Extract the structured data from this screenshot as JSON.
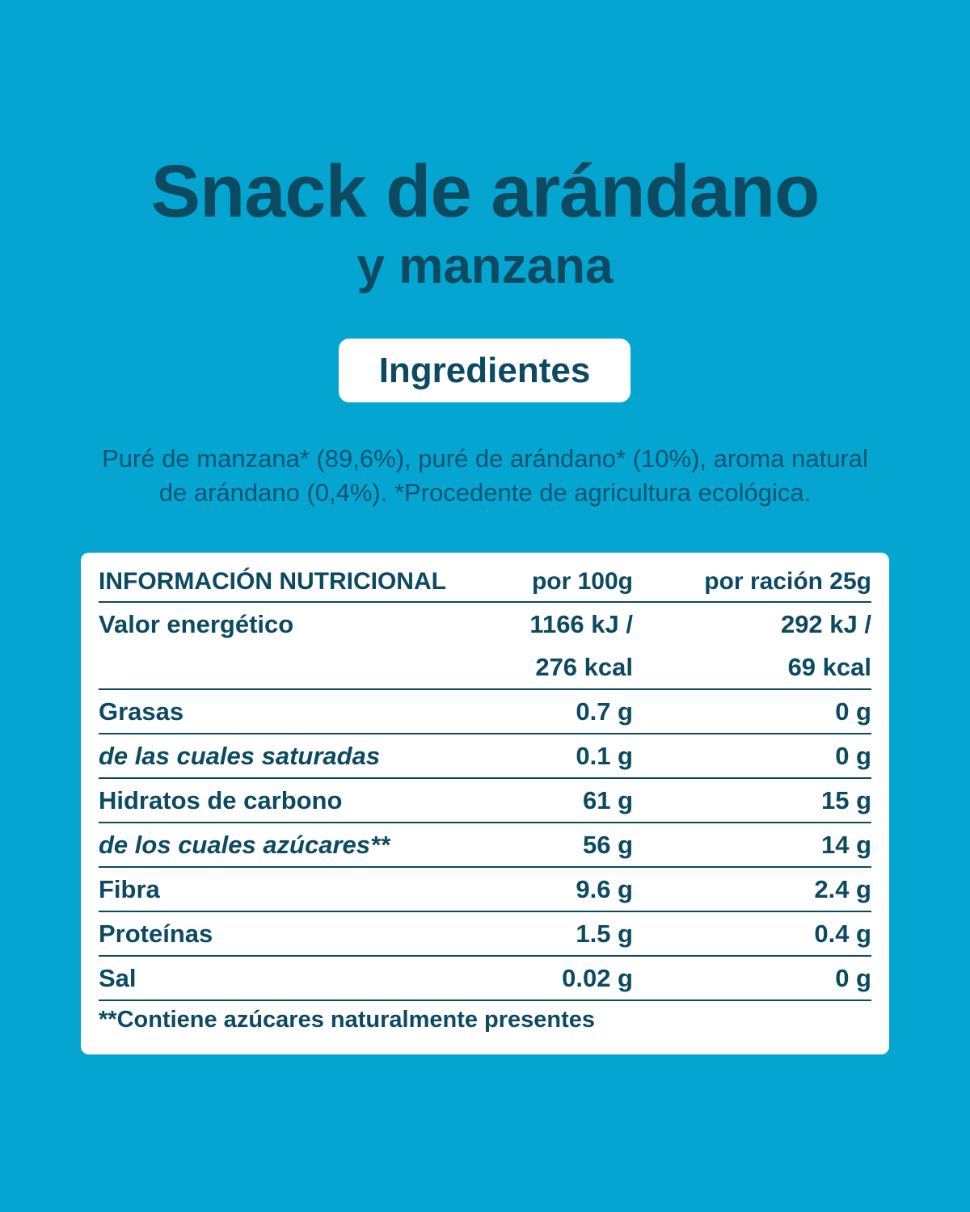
{
  "title": "Snack de arándano",
  "subtitle": "y manzana",
  "ingredients_label": "Ingredientes",
  "ingredients_lines": [
    "Puré de manzana* (89,6%), puré de arándano* (10%), aroma natural",
    "de arándano (0,4%). *Procedente de agricultura ecológica."
  ],
  "table": {
    "header": [
      "INFORMACIÓN NUTRICIONAL",
      "por 100g",
      "por ración 25g"
    ],
    "rows": [
      {
        "label": "Valor energético",
        "per_100g": [
          "1166 kJ /",
          "276 kcal"
        ],
        "per_serving": [
          "292 kJ /",
          "69 kcal"
        ]
      },
      {
        "label": "Grasas",
        "per_100g": [
          "0.7 g"
        ],
        "per_serving": [
          "0 g"
        ]
      },
      {
        "label": "de las cuales saturadas",
        "per_100g": [
          "0.1 g"
        ],
        "per_serving": [
          "0 g"
        ],
        "italic": true
      },
      {
        "label": "Hidratos de carbono",
        "per_100g": [
          "61 g"
        ],
        "per_serving": [
          "15 g"
        ]
      },
      {
        "label": "de los cuales azúcares**",
        "per_100g": [
          "56 g"
        ],
        "per_serving": [
          "14 g"
        ],
        "italic": true
      },
      {
        "label": "Fibra",
        "per_100g": [
          "9.6 g"
        ],
        "per_serving": [
          "2.4 g"
        ]
      },
      {
        "label": "Proteínas",
        "per_100g": [
          "1.5 g"
        ],
        "per_serving": [
          "0.4 g"
        ]
      },
      {
        "label": "Sal",
        "per_100g": [
          "0.02 g"
        ],
        "per_serving": [
          "0 g"
        ]
      }
    ],
    "footnote": "**Contiene azúcares naturalmente presentes"
  }
}
